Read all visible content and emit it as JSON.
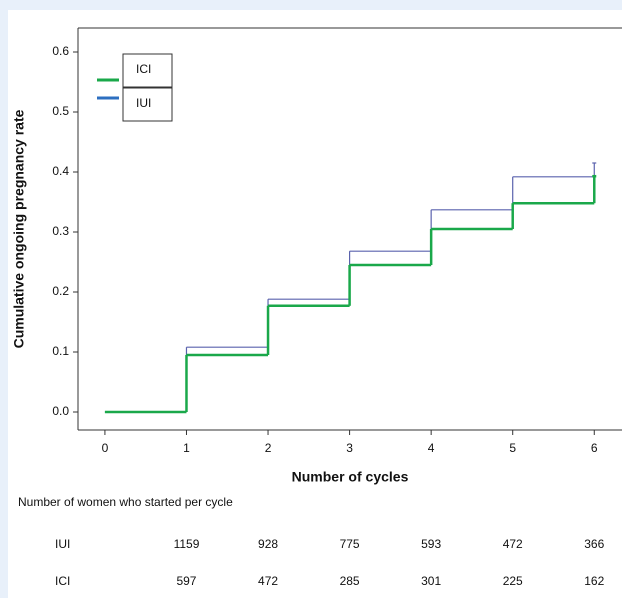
{
  "chart_data": {
    "type": "step",
    "xlabel": "Number of cycles",
    "ylabel": "Cumulative ongoing pregnancy rate",
    "x": [
      0,
      1,
      2,
      3,
      4,
      5,
      6
    ],
    "series": [
      {
        "name": "ICI",
        "color": "#1aa84a",
        "values": [
          0,
          0.095,
          0.177,
          0.245,
          0.305,
          0.348,
          0.393
        ]
      },
      {
        "name": "IUI",
        "color": "#5a62ad",
        "legend_color": "#2d6fc0",
        "values": [
          0,
          0.108,
          0.188,
          0.268,
          0.337,
          0.392,
          0.415
        ]
      }
    ],
    "xlim": [
      -0.33,
      6.34
    ],
    "ylim": [
      -0.03,
      0.64
    ],
    "xticks": [
      0,
      1,
      2,
      3,
      4,
      5,
      6
    ],
    "yticks": [
      {
        "value": 0,
        "label": "0.0"
      },
      0.1,
      0.2,
      0.3,
      0.4,
      0.5,
      0.6
    ],
    "risk_table": {
      "title": "Number of women who started per cycle",
      "x": [
        1,
        2,
        3,
        4,
        5,
        6
      ],
      "rows": [
        {
          "name": "IUI",
          "values": [
            1159,
            928,
            775,
            593,
            472,
            366
          ]
        },
        {
          "name": "ICI",
          "values": [
            597,
            472,
            285,
            301,
            225,
            162
          ]
        }
      ]
    }
  }
}
